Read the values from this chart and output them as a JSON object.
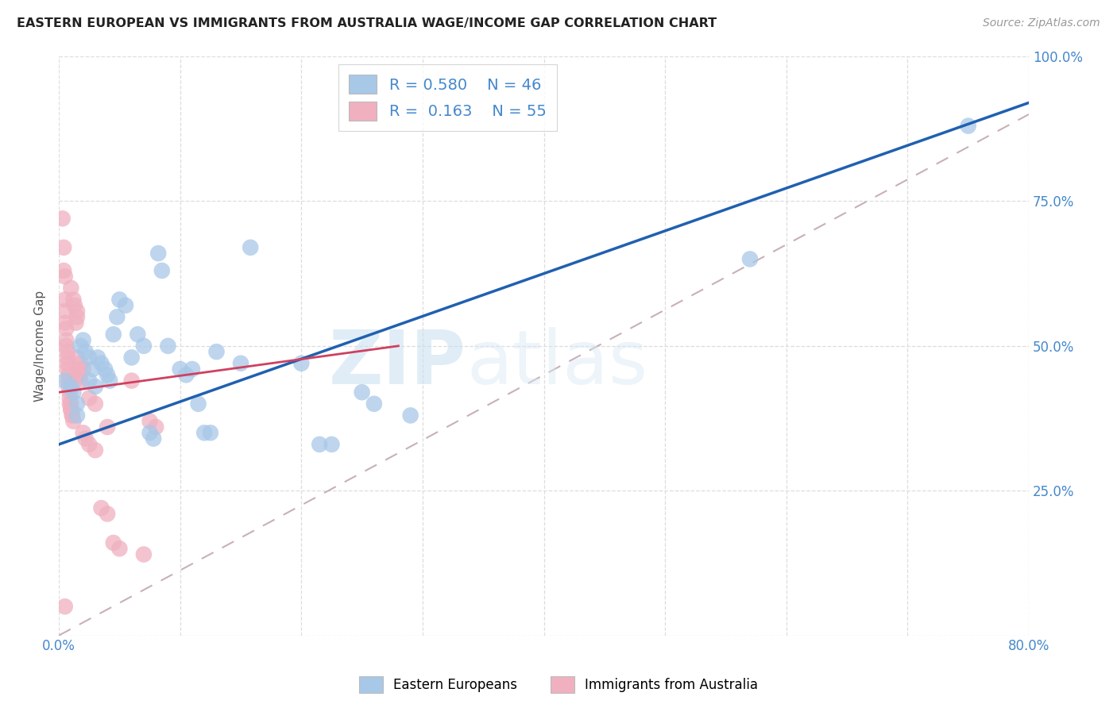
{
  "title": "EASTERN EUROPEAN VS IMMIGRANTS FROM AUSTRALIA WAGE/INCOME GAP CORRELATION CHART",
  "source": "Source: ZipAtlas.com",
  "ylabel": "Wage/Income Gap",
  "xlim": [
    0.0,
    0.8
  ],
  "ylim": [
    0.0,
    1.0
  ],
  "x_ticks": [
    0.0,
    0.1,
    0.2,
    0.3,
    0.4,
    0.5,
    0.6,
    0.7,
    0.8
  ],
  "x_tick_labels": [
    "0.0%",
    "",
    "",
    "",
    "",
    "",
    "",
    "",
    "80.0%"
  ],
  "y_ticks": [
    0.0,
    0.25,
    0.5,
    0.75,
    1.0
  ],
  "y_tick_labels_right": [
    "",
    "25.0%",
    "50.0%",
    "75.0%",
    "100.0%"
  ],
  "blue_R": "0.580",
  "blue_N": "46",
  "pink_R": "0.163",
  "pink_N": "55",
  "legend_label_blue": "Eastern Europeans",
  "legend_label_pink": "Immigrants from Australia",
  "blue_color": "#a8c8e8",
  "pink_color": "#f0b0c0",
  "blue_line_color": "#2060b0",
  "pink_line_color": "#d04060",
  "diag_line_color": "#c8b0b8",
  "watermark_zip": "ZIP",
  "watermark_atlas": "atlas",
  "tick_color": "#4488cc",
  "blue_points": [
    [
      0.005,
      0.44
    ],
    [
      0.01,
      0.43
    ],
    [
      0.012,
      0.42
    ],
    [
      0.015,
      0.4
    ],
    [
      0.015,
      0.38
    ],
    [
      0.018,
      0.5
    ],
    [
      0.02,
      0.51
    ],
    [
      0.022,
      0.49
    ],
    [
      0.025,
      0.48
    ],
    [
      0.025,
      0.44
    ],
    [
      0.028,
      0.46
    ],
    [
      0.03,
      0.43
    ],
    [
      0.032,
      0.48
    ],
    [
      0.035,
      0.47
    ],
    [
      0.038,
      0.46
    ],
    [
      0.04,
      0.45
    ],
    [
      0.042,
      0.44
    ],
    [
      0.045,
      0.52
    ],
    [
      0.048,
      0.55
    ],
    [
      0.05,
      0.58
    ],
    [
      0.055,
      0.57
    ],
    [
      0.06,
      0.48
    ],
    [
      0.065,
      0.52
    ],
    [
      0.07,
      0.5
    ],
    [
      0.075,
      0.35
    ],
    [
      0.078,
      0.34
    ],
    [
      0.082,
      0.66
    ],
    [
      0.085,
      0.63
    ],
    [
      0.09,
      0.5
    ],
    [
      0.1,
      0.46
    ],
    [
      0.105,
      0.45
    ],
    [
      0.11,
      0.46
    ],
    [
      0.115,
      0.4
    ],
    [
      0.12,
      0.35
    ],
    [
      0.125,
      0.35
    ],
    [
      0.13,
      0.49
    ],
    [
      0.15,
      0.47
    ],
    [
      0.158,
      0.67
    ],
    [
      0.2,
      0.47
    ],
    [
      0.215,
      0.33
    ],
    [
      0.225,
      0.33
    ],
    [
      0.25,
      0.42
    ],
    [
      0.26,
      0.4
    ],
    [
      0.29,
      0.38
    ],
    [
      0.57,
      0.65
    ],
    [
      0.75,
      0.88
    ]
  ],
  "pink_points": [
    [
      0.003,
      0.72
    ],
    [
      0.004,
      0.67
    ],
    [
      0.004,
      0.63
    ],
    [
      0.005,
      0.62
    ],
    [
      0.005,
      0.58
    ],
    [
      0.005,
      0.56
    ],
    [
      0.005,
      0.54
    ],
    [
      0.006,
      0.53
    ],
    [
      0.006,
      0.51
    ],
    [
      0.006,
      0.5
    ],
    [
      0.007,
      0.49
    ],
    [
      0.007,
      0.48
    ],
    [
      0.007,
      0.47
    ],
    [
      0.007,
      0.46
    ],
    [
      0.008,
      0.45
    ],
    [
      0.008,
      0.44
    ],
    [
      0.008,
      0.43
    ],
    [
      0.009,
      0.42
    ],
    [
      0.009,
      0.41
    ],
    [
      0.009,
      0.4
    ],
    [
      0.01,
      0.4
    ],
    [
      0.01,
      0.39
    ],
    [
      0.01,
      0.39
    ],
    [
      0.011,
      0.38
    ],
    [
      0.011,
      0.38
    ],
    [
      0.012,
      0.37
    ],
    [
      0.013,
      0.44
    ],
    [
      0.014,
      0.54
    ],
    [
      0.015,
      0.55
    ],
    [
      0.015,
      0.56
    ],
    [
      0.016,
      0.46
    ],
    [
      0.017,
      0.45
    ],
    [
      0.018,
      0.44
    ],
    [
      0.02,
      0.35
    ],
    [
      0.022,
      0.34
    ],
    [
      0.025,
      0.33
    ],
    [
      0.03,
      0.32
    ],
    [
      0.035,
      0.22
    ],
    [
      0.04,
      0.21
    ],
    [
      0.045,
      0.16
    ],
    [
      0.05,
      0.15
    ],
    [
      0.06,
      0.44
    ],
    [
      0.07,
      0.14
    ],
    [
      0.075,
      0.37
    ],
    [
      0.08,
      0.36
    ],
    [
      0.01,
      0.6
    ],
    [
      0.012,
      0.58
    ],
    [
      0.013,
      0.57
    ],
    [
      0.015,
      0.48
    ],
    [
      0.018,
      0.47
    ],
    [
      0.02,
      0.46
    ],
    [
      0.025,
      0.41
    ],
    [
      0.03,
      0.4
    ],
    [
      0.005,
      0.05
    ],
    [
      0.04,
      0.36
    ]
  ],
  "blue_line_x": [
    0.0,
    0.8
  ],
  "blue_line_y": [
    0.33,
    0.92
  ],
  "pink_line_x": [
    0.0,
    0.28
  ],
  "pink_line_y": [
    0.42,
    0.5
  ]
}
